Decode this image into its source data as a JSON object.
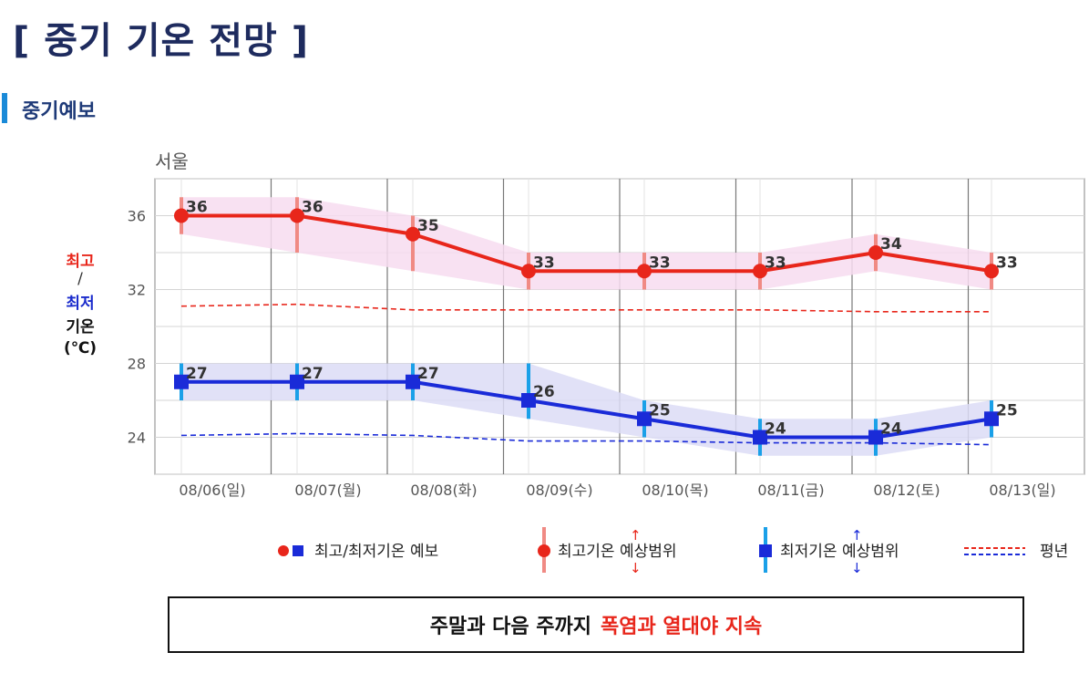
{
  "page": {
    "title": "[ 중기 기온 전망 ]",
    "section_title": "중기예보",
    "banner_text": "주말과 다음 주까지",
    "banner_highlight": "폭염과 열대야 지속"
  },
  "y_axis_label": {
    "max": "최고",
    "slash": "/",
    "min": "최저",
    "temp": "기온",
    "unit": "(℃)"
  },
  "chart_data": {
    "type": "line",
    "title": "서울",
    "categories": [
      "08/06(일)",
      "08/07(월)",
      "08/08(화)",
      "08/09(수)",
      "08/10(목)",
      "08/11(금)",
      "08/12(토)",
      "08/13(일)"
    ],
    "ylim": [
      22,
      38
    ],
    "yticks": [
      24,
      28,
      32,
      36
    ],
    "grid": true,
    "series": [
      {
        "name": "최고",
        "values": [
          36,
          36,
          35,
          33,
          33,
          33,
          34,
          33
        ],
        "range_low": [
          35,
          34,
          33,
          32,
          32,
          32,
          33,
          32
        ],
        "range_high": [
          37,
          37,
          36,
          34,
          34,
          34,
          35,
          34
        ],
        "color": "#e8261b",
        "range_color": "#f08a84",
        "band_color": "#f7dcf0",
        "marker": "circle",
        "labels": [
          "36",
          "36",
          "35",
          "33",
          "33",
          "33",
          "34",
          "33"
        ]
      },
      {
        "name": "최저",
        "values": [
          27,
          27,
          27,
          26,
          25,
          24,
          24,
          25
        ],
        "range_low": [
          26,
          26,
          26,
          25,
          24,
          23,
          23,
          24
        ],
        "range_high": [
          28,
          28,
          28,
          28,
          26,
          25,
          25,
          26
        ],
        "color": "#1a2bd8",
        "range_color": "#1aa0e8",
        "band_color": "#dcdcf6",
        "marker": "square",
        "labels": [
          "27",
          "27",
          "27",
          "26",
          "25",
          "24",
          "24",
          "25"
        ]
      }
    ],
    "normal": [
      {
        "name": "평년 최고",
        "values": [
          31.1,
          31.2,
          30.9,
          30.9,
          30.9,
          30.9,
          30.8,
          30.8
        ],
        "color": "#e8261b"
      },
      {
        "name": "평년 최저",
        "values": [
          24.1,
          24.2,
          24.1,
          23.8,
          23.8,
          23.7,
          23.7,
          23.6
        ],
        "color": "#1a2bd8"
      }
    ],
    "legend": {
      "placement": "bottom",
      "items": [
        "최고/최저기온 예보",
        "최고기온 예상범위",
        "최저기온 예상범위",
        "평년"
      ]
    }
  }
}
